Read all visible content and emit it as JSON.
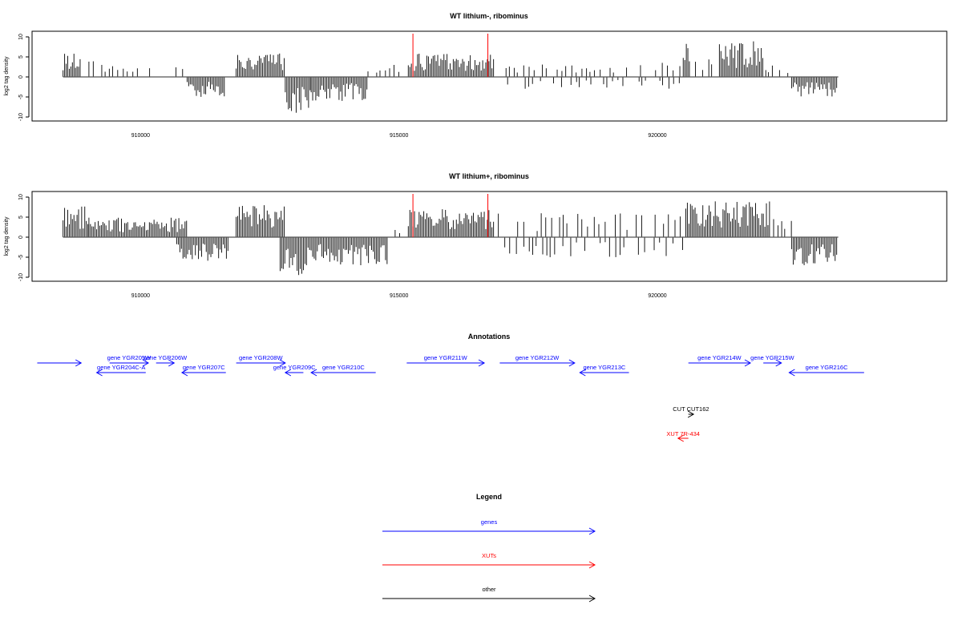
{
  "chart_data": [
    {
      "type": "bar",
      "title": "WT lithium-, ribominus",
      "ylabel": "log2 tag density",
      "yticks": [
        "-10",
        "-5",
        "0",
        "5",
        "10"
      ],
      "ytick_values": [
        -10,
        -5,
        0,
        5,
        10
      ],
      "xticks": [
        "910000",
        "915000",
        "920000"
      ],
      "xtick_values": [
        910000,
        915000,
        920000
      ],
      "xlim": [
        907900,
        925600
      ],
      "ylim": [
        -11,
        11
      ],
      "markers": [
        915270,
        916720
      ],
      "regions": [
        {
          "start": 908500,
          "end": 908850,
          "amp": 6,
          "sign": 1
        },
        {
          "start": 909000,
          "end": 910200,
          "amp": 4,
          "sign": 1,
          "sparse": true
        },
        {
          "start": 910500,
          "end": 910900,
          "amp": 3,
          "sign": 1,
          "sparse": true
        },
        {
          "start": 910900,
          "end": 911650,
          "amp": 5,
          "sign": -1
        },
        {
          "start": 911850,
          "end": 912800,
          "amp": 6,
          "sign": 1
        },
        {
          "start": 912800,
          "end": 913300,
          "amp": 9,
          "sign": -1
        },
        {
          "start": 913300,
          "end": 914400,
          "amp": 6,
          "sign": -1
        },
        {
          "start": 914400,
          "end": 915100,
          "amp": 3,
          "sign": 1,
          "sparse": true
        },
        {
          "start": 915180,
          "end": 916850,
          "amp": 6,
          "sign": 1
        },
        {
          "start": 917000,
          "end": 920500,
          "amp": 4,
          "sign": 1,
          "sparse": true
        },
        {
          "start": 917000,
          "end": 920500,
          "amp": 3,
          "sign": -1,
          "sparse": true
        },
        {
          "start": 920500,
          "end": 920650,
          "amp": 10,
          "sign": 1
        },
        {
          "start": 920650,
          "end": 921200,
          "amp": 5,
          "sign": 1,
          "sparse": true
        },
        {
          "start": 921200,
          "end": 922050,
          "amp": 9,
          "sign": 1
        },
        {
          "start": 922050,
          "end": 922600,
          "amp": 3,
          "sign": 1,
          "sparse": true
        },
        {
          "start": 922600,
          "end": 923500,
          "amp": 5,
          "sign": -1
        }
      ]
    },
    {
      "type": "bar",
      "title": "WT lithium+, ribominus",
      "ylabel": "log2 tag density",
      "yticks": [
        "-10",
        "-5",
        "0",
        "5",
        "10"
      ],
      "ytick_values": [
        -10,
        -5,
        0,
        5,
        10
      ],
      "xticks": [
        "910000",
        "915000",
        "920000"
      ],
      "xtick_values": [
        910000,
        915000,
        920000
      ],
      "xlim": [
        907900,
        925600
      ],
      "ylim": [
        -11,
        11
      ],
      "markers": [
        915270,
        916720
      ],
      "regions": [
        {
          "start": 908500,
          "end": 909000,
          "amp": 8,
          "sign": 1
        },
        {
          "start": 909000,
          "end": 910900,
          "amp": 5,
          "sign": 1
        },
        {
          "start": 910700,
          "end": 911700,
          "amp": 6,
          "sign": -1
        },
        {
          "start": 911850,
          "end": 912800,
          "amp": 8,
          "sign": 1
        },
        {
          "start": 912700,
          "end": 913300,
          "amp": 10,
          "sign": -1
        },
        {
          "start": 913300,
          "end": 914800,
          "amp": 7,
          "sign": -1
        },
        {
          "start": 914800,
          "end": 915100,
          "amp": 2,
          "sign": 1,
          "sparse": true
        },
        {
          "start": 915180,
          "end": 916850,
          "amp": 7,
          "sign": 1
        },
        {
          "start": 916850,
          "end": 920500,
          "amp": 6,
          "sign": 1,
          "sparse": true
        },
        {
          "start": 916850,
          "end": 920500,
          "amp": 5,
          "sign": -1,
          "sparse": true
        },
        {
          "start": 920550,
          "end": 922200,
          "amp": 9,
          "sign": 1
        },
        {
          "start": 922200,
          "end": 922600,
          "amp": 5,
          "sign": 1,
          "sparse": true
        },
        {
          "start": 922600,
          "end": 923500,
          "amp": 7,
          "sign": -1
        }
      ]
    }
  ],
  "annotations": {
    "title": "Annotations",
    "colors": {
      "genes": "#0000ff",
      "xuts": "#ff0000",
      "other": "#000000"
    },
    "features": [
      {
        "label": "",
        "start": 908000,
        "end": 908850,
        "dir": 1,
        "row": 0,
        "color": "#0000ff"
      },
      {
        "label": "gene YGR204C-A",
        "start": 909150,
        "end": 910100,
        "dir": -1,
        "row": 1,
        "color": "#0000ff"
      },
      {
        "label": "gene YGR205W",
        "start": 909400,
        "end": 910150,
        "dir": 1,
        "row": 0,
        "color": "#0000ff"
      },
      {
        "label": "gene YGR206W",
        "start": 910300,
        "end": 910650,
        "dir": 1,
        "row": 0,
        "color": "#0000ff"
      },
      {
        "label": "gene YGR207C",
        "start": 910800,
        "end": 911650,
        "dir": -1,
        "row": 1,
        "color": "#0000ff"
      },
      {
        "label": "gene YGR208W",
        "start": 911850,
        "end": 912800,
        "dir": 1,
        "row": 0,
        "color": "#0000ff"
      },
      {
        "label": "gene YGR209C",
        "start": 912800,
        "end": 913150,
        "dir": -1,
        "row": 1,
        "color": "#0000ff"
      },
      {
        "label": "gene YGR210C",
        "start": 913300,
        "end": 914550,
        "dir": -1,
        "row": 1,
        "color": "#0000ff"
      },
      {
        "label": "gene YGR211W",
        "start": 915150,
        "end": 916650,
        "dir": 1,
        "row": 0,
        "color": "#0000ff"
      },
      {
        "label": "gene YGR212W",
        "start": 916950,
        "end": 918400,
        "dir": 1,
        "row": 0,
        "color": "#0000ff"
      },
      {
        "label": "gene YGR213C",
        "start": 918500,
        "end": 919450,
        "dir": -1,
        "row": 1,
        "color": "#0000ff"
      },
      {
        "label": "gene YGR214W",
        "start": 920600,
        "end": 921800,
        "dir": 1,
        "row": 0,
        "color": "#0000ff"
      },
      {
        "label": "gene YGR215W",
        "start": 922050,
        "end": 922400,
        "dir": 1,
        "row": 0,
        "color": "#0000ff"
      },
      {
        "label": "gene YGR216C",
        "start": 922550,
        "end": 924000,
        "dir": -1,
        "row": 1,
        "color": "#0000ff"
      },
      {
        "label": "CUT CUT162",
        "start": 920600,
        "end": 920700,
        "dir": 1,
        "row": 2,
        "color": "#000000"
      },
      {
        "label": "XUT 7R-434",
        "start": 920400,
        "end": 920600,
        "dir": -1,
        "row": 3,
        "color": "#ff0000"
      }
    ]
  },
  "legend": {
    "title": "Legend",
    "items": [
      {
        "label": "genes",
        "color": "#0000ff"
      },
      {
        "label": "XUTs",
        "color": "#ff0000"
      },
      {
        "label": "other",
        "color": "#000000"
      }
    ]
  }
}
